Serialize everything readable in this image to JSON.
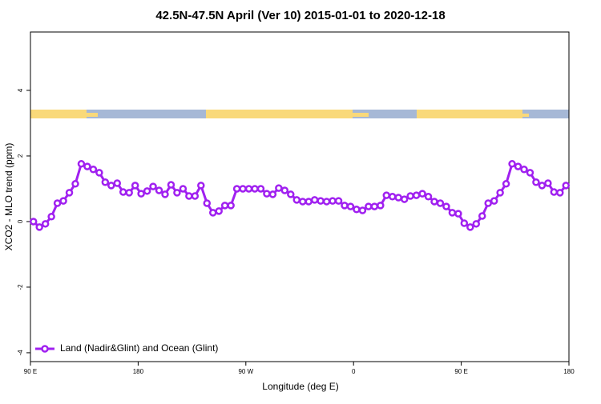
{
  "chart_data": {
    "type": "line",
    "title": "42.5N-47.5N April (Ver 10)   2015-01-01 to 2020-12-18",
    "x_label": "Longitude (deg E)",
    "y_label": "XCO2 - MLO trend (ppm)",
    "x": [
      92.5,
      97.5,
      102.5,
      107.5,
      112.5,
      117.5,
      122.5,
      127.5,
      132.5,
      137.5,
      142.5,
      147.5,
      152.5,
      157.5,
      162.5,
      167.5,
      172.5,
      177.5,
      182.5,
      187.5,
      192.5,
      197.5,
      202.5,
      207.5,
      212.5,
      217.5,
      222.5,
      227.5,
      232.5,
      237.5,
      242.5,
      247.5,
      252.5,
      257.5,
      262.5,
      267.5,
      272.5,
      277.5,
      282.5,
      287.5,
      292.5,
      297.5,
      302.5,
      307.5,
      312.5,
      317.5,
      322.5,
      327.5,
      332.5,
      337.5,
      342.5,
      347.5,
      352.5,
      357.5,
      362.5,
      367.5,
      372.5,
      377.5,
      382.5,
      387.5,
      392.5,
      397.5,
      402.5,
      407.5,
      412.5,
      417.5,
      422.5,
      427.5,
      432.5,
      437.5,
      442.5,
      447.5,
      452.5,
      457.5,
      462.5,
      467.5,
      472.5,
      477.5,
      482.5,
      487.5,
      492.5,
      497.5,
      502.5,
      507.5,
      512.5,
      517.5,
      522.5,
      527.5,
      532.5,
      537.5
    ],
    "series": [
      {
        "name": "Land (Nadir&Glint) and Ocean (Glint)",
        "color": "#a020f0",
        "values": [
          0.0,
          -0.17,
          -0.07,
          0.15,
          0.56,
          0.63,
          0.88,
          1.15,
          1.76,
          1.68,
          1.59,
          1.49,
          1.2,
          1.1,
          1.17,
          0.9,
          0.88,
          1.1,
          0.85,
          0.93,
          1.07,
          0.95,
          0.83,
          1.12,
          0.88,
          1.0,
          0.78,
          0.78,
          1.1,
          0.56,
          0.27,
          0.32,
          0.49,
          0.49,
          1.0,
          1.0,
          1.0,
          1.0,
          1.0,
          0.85,
          0.83,
          1.02,
          0.95,
          0.83,
          0.66,
          0.61,
          0.61,
          0.66,
          0.63,
          0.61,
          0.63,
          0.63,
          0.49,
          0.46,
          0.37,
          0.34,
          0.46,
          0.46,
          0.49,
          0.8,
          0.76,
          0.73,
          0.68,
          0.78,
          0.8,
          0.85,
          0.76,
          0.61,
          0.56,
          0.46,
          0.27,
          0.24,
          -0.05,
          -0.17,
          -0.07,
          0.17,
          0.56,
          0.63,
          0.88,
          1.15,
          1.76,
          1.68,
          1.59,
          1.49,
          1.2,
          1.1,
          1.17,
          0.9,
          0.88,
          1.1
        ]
      }
    ],
    "xlim": [
      90,
      540
    ],
    "xticks": [
      {
        "value": 90,
        "label": "90 E"
      },
      180,
      {
        "value": 270,
        "label": "90 W"
      },
      {
        "value": 360,
        "label": "0"
      },
      {
        "value": 450,
        "label": "90 E"
      },
      {
        "value": 540,
        "label": "180"
      }
    ],
    "ylim": [
      -4.27,
      5.78
    ],
    "yticks": [
      -4,
      -2,
      0,
      2,
      4
    ],
    "legend": "bottom-left"
  }
}
